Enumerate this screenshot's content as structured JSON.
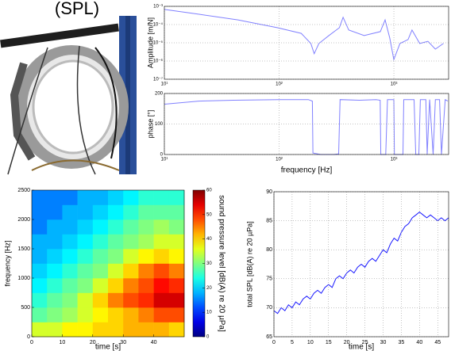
{
  "header": {
    "title": "(SPL)"
  },
  "chart_data": [
    {
      "type": "line",
      "ylabel": "Amplitude [m/N]",
      "xscale": "log",
      "yscale": "log",
      "grid": true,
      "color": "#8080ff",
      "xlim": [
        10,
        3000
      ],
      "ylim": [
        1e-07,
        0.001
      ],
      "xticks": [
        {
          "value": 10,
          "label": "10¹"
        },
        {
          "value": 100,
          "label": "10²"
        },
        {
          "value": 1000,
          "label": "10³"
        }
      ],
      "yticks": [
        {
          "value": 1e-07,
          "label": "10⁻⁷"
        },
        {
          "value": 1e-06,
          "label": "10⁻⁶"
        },
        {
          "value": 1e-05,
          "label": "10⁻⁵"
        },
        {
          "value": 0.0001,
          "label": "10⁻⁴"
        },
        {
          "value": 0.001,
          "label": "10⁻³"
        }
      ],
      "x": [
        10,
        19.8,
        43.8,
        97,
        156,
        189,
        202,
        222,
        272,
        335,
        361,
        404,
        551,
        762,
        838,
        922,
        1000,
        1130,
        1330,
        1440,
        1680,
        1980,
        2300,
        2700
      ],
      "values": [
        0.00068,
        0.00037,
        0.00018,
        6.7e-05,
        3.3e-05,
        9.1e-06,
        2.5e-06,
        9.1e-06,
        2.5e-05,
        6.7e-05,
        0.00025,
        5e-05,
        2.5e-05,
        4.1e-05,
        0.00018,
        1.8e-05,
        1.2e-06,
        9.1e-06,
        1.5e-05,
        5e-05,
        9.1e-06,
        1.2e-05,
        4.5e-06,
        9.1e-06
      ]
    },
    {
      "type": "line",
      "ylabel": "phase [°]",
      "xlabel": "frequency [Hz]",
      "xscale": "log",
      "grid": true,
      "color": "#8080ff",
      "xlim": [
        10,
        3000
      ],
      "ylim": [
        0,
        200
      ],
      "xticks": [
        {
          "value": 10,
          "label": "10¹"
        },
        {
          "value": 100,
          "label": "10²"
        },
        {
          "value": 1000,
          "label": "10³"
        }
      ],
      "yticks": [
        0,
        100,
        200
      ],
      "x": [
        10,
        20,
        40,
        100,
        180,
        195,
        197,
        230,
        300,
        330,
        340,
        500,
        700,
        760,
        770,
        850,
        880,
        1000,
        1010,
        1200,
        1220,
        1500,
        1550,
        1650,
        1700,
        1900,
        1950,
        2050,
        2200,
        2300,
        2500,
        2600,
        2800,
        2950
      ],
      "values": [
        165,
        175,
        178,
        180,
        180,
        175,
        5,
        0,
        0,
        2,
        180,
        178,
        180,
        178,
        0,
        0,
        180,
        180,
        0,
        0,
        180,
        180,
        0,
        0,
        180,
        180,
        0,
        180,
        0,
        180,
        180,
        0,
        180,
        175
      ]
    },
    {
      "type": "heatmap",
      "xlabel": "time [s]",
      "ylabel": "frequency [Hz]",
      "colorbar_label": "sound pressure level [dB(A) re 20 µPa]",
      "colormap": "jet",
      "xlim": [
        0,
        50
      ],
      "ylim": [
        0,
        2500
      ],
      "zlim": [
        0,
        60
      ],
      "xticks": [
        0,
        10,
        20,
        30,
        40
      ],
      "yticks": [
        0,
        500,
        1000,
        1500,
        2000,
        2500
      ],
      "zticks": [
        0,
        10,
        20,
        30,
        40,
        50,
        60
      ],
      "xbins": [
        0,
        5,
        10,
        15,
        20,
        25,
        30,
        35,
        40,
        45,
        50
      ],
      "ybins": [
        0,
        250,
        500,
        750,
        1000,
        1250,
        1500,
        1750,
        2000,
        2250,
        2500
      ],
      "z": [
        [
          35,
          35,
          38,
          38,
          40,
          40,
          42,
          42,
          42,
          40
        ],
        [
          28,
          30,
          32,
          35,
          38,
          40,
          42,
          45,
          48,
          48
        ],
        [
          25,
          28,
          30,
          35,
          40,
          45,
          48,
          50,
          55,
          55
        ],
        [
          22,
          25,
          28,
          30,
          35,
          40,
          45,
          48,
          52,
          50
        ],
        [
          20,
          22,
          25,
          28,
          30,
          35,
          40,
          45,
          48,
          45
        ],
        [
          18,
          20,
          22,
          25,
          28,
          30,
          35,
          38,
          40,
          38
        ],
        [
          18,
          18,
          20,
          22,
          25,
          28,
          30,
          32,
          35,
          35
        ],
        [
          15,
          18,
          18,
          20,
          22,
          25,
          28,
          30,
          32,
          30
        ],
        [
          15,
          15,
          18,
          18,
          20,
          22,
          25,
          28,
          28,
          28
        ],
        [
          15,
          15,
          15,
          18,
          18,
          20,
          22,
          25,
          25,
          25
        ]
      ]
    },
    {
      "type": "line",
      "xlabel": "time [s]",
      "ylabel": "total SPL [dB(A) re 20 µPa]",
      "grid": true,
      "color": "#1a1aff",
      "xlim": [
        0,
        48
      ],
      "ylim": [
        65,
        90
      ],
      "xticks": [
        0,
        5,
        10,
        15,
        20,
        25,
        30,
        35,
        40,
        45
      ],
      "yticks": [
        65,
        70,
        75,
        80,
        85,
        90
      ],
      "x": [
        0,
        1,
        2,
        3,
        4,
        5,
        6,
        7,
        8,
        9,
        10,
        11,
        12,
        13,
        14,
        15,
        16,
        17,
        18,
        19,
        20,
        21,
        22,
        23,
        24,
        25,
        26,
        27,
        28,
        29,
        30,
        31,
        32,
        33,
        34,
        35,
        36,
        37,
        38,
        39,
        40,
        41,
        42,
        43,
        44,
        45,
        46,
        47,
        48
      ],
      "values": [
        69.5,
        69,
        70,
        69.5,
        70.5,
        70,
        71,
        70.5,
        71.5,
        72,
        71.5,
        72.5,
        73,
        72.5,
        73.5,
        74,
        73.5,
        75,
        75.5,
        75,
        76,
        76.5,
        76,
        77,
        77.5,
        77,
        78,
        78.5,
        78,
        79,
        80,
        79.5,
        81,
        82,
        81.5,
        83,
        84,
        84.5,
        85.5,
        86,
        86.5,
        86,
        85.5,
        86,
        85.5,
        85,
        85.5,
        85,
        85.5
      ]
    }
  ]
}
